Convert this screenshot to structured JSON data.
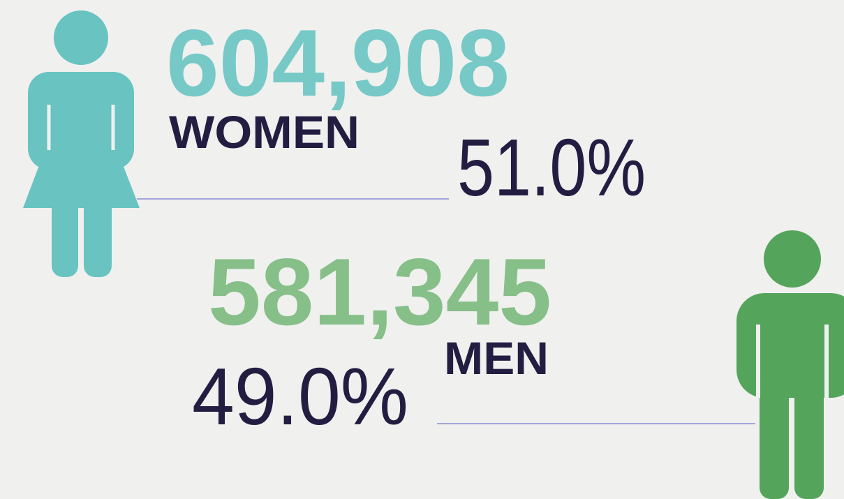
{
  "women": {
    "count": "604,908",
    "label": "WOMEN",
    "percent": "51.0%"
  },
  "men": {
    "count": "581,345",
    "label": "MEN",
    "percent": "49.0%"
  }
}
